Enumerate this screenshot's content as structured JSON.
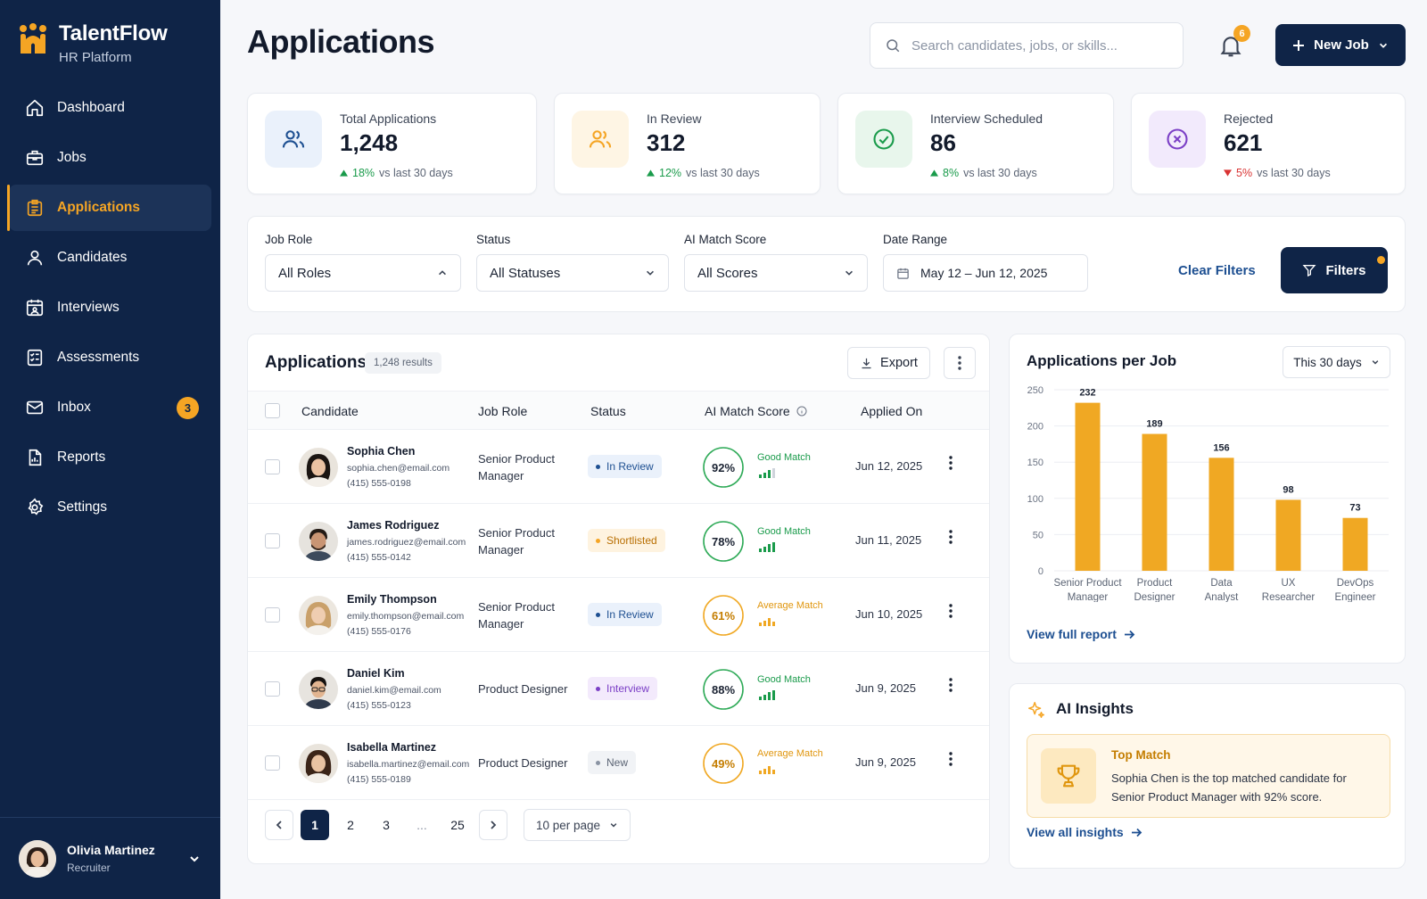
{
  "brand": {
    "name": "TalentFlow",
    "subtitle": "HR Platform",
    "accent": "#f5a524",
    "navy": "#0f2447"
  },
  "sidebar": {
    "items": [
      {
        "label": "Dashboard",
        "icon": "home-icon"
      },
      {
        "label": "Jobs",
        "icon": "briefcase-icon"
      },
      {
        "label": "Applications",
        "icon": "clipboard-icon",
        "active": true
      },
      {
        "label": "Candidates",
        "icon": "user-icon"
      },
      {
        "label": "Interviews",
        "icon": "calendar-user-icon"
      },
      {
        "label": "Assessments",
        "icon": "checklist-icon"
      },
      {
        "label": "Inbox",
        "icon": "mail-icon",
        "badge": "3"
      },
      {
        "label": "Reports",
        "icon": "report-icon"
      },
      {
        "label": "Settings",
        "icon": "gear-icon"
      }
    ]
  },
  "user": {
    "name": "Olivia Martinez",
    "role": "Recruiter"
  },
  "header": {
    "title": "Applications",
    "search_placeholder": "Search candidates, jobs, or skills...",
    "notification_count": "6",
    "new_job_label": "New Job"
  },
  "stats": [
    {
      "label": "Total Applications",
      "value": "1,248",
      "change": "18%",
      "direction": "up",
      "suffix": "vs last 30 days",
      "icon": "users-icon",
      "color": "#1d4f91"
    },
    {
      "label": "In Review",
      "value": "312",
      "change": "12%",
      "direction": "up",
      "suffix": "vs last 30 days",
      "icon": "users-icon",
      "color": "#f5a524"
    },
    {
      "label": "Interview Scheduled",
      "value": "86",
      "change": "8%",
      "direction": "up",
      "suffix": "vs last 30 days",
      "icon": "check-circle-icon",
      "color": "#1a9b4b"
    },
    {
      "label": "Rejected",
      "value": "621",
      "change": "5%",
      "direction": "down",
      "suffix": "vs last 30 days",
      "icon": "x-circle-icon",
      "color": "#7b3fc6"
    }
  ],
  "filters": {
    "job_role": {
      "label": "Job Role",
      "value": "All Roles"
    },
    "status": {
      "label": "Status",
      "value": "All Statuses"
    },
    "score": {
      "label": "AI Match Score",
      "value": "All Scores"
    },
    "date": {
      "label": "Date Range",
      "value": "May 12 – Jun 12, 2025"
    },
    "clear_label": "Clear Filters",
    "filters_label": "Filters"
  },
  "table": {
    "title": "Applications",
    "results": "1,248 results",
    "export_label": "Export",
    "columns": {
      "candidate": "Candidate",
      "role": "Job Role",
      "status": "Status",
      "score": "AI Match Score",
      "applied": "Applied On"
    },
    "rows": [
      {
        "name": "Sophia Chen",
        "email": "sophia.chen@email.com",
        "phone": "(415) 555-0198",
        "role": "Senior Product Manager",
        "status": "In Review",
        "score": "92%",
        "score_value": 92,
        "match": "Good Match",
        "date": "Jun 12, 2025"
      },
      {
        "name": "James Rodriguez",
        "email": "james.rodriguez@email.com",
        "phone": "(415) 555-0142",
        "role": "Senior Product Manager",
        "status": "Shortlisted",
        "score": "78%",
        "score_value": 78,
        "match": "Good Match",
        "date": "Jun 11, 2025"
      },
      {
        "name": "Emily Thompson",
        "email": "emily.thompson@email.com",
        "phone": "(415) 555-0176",
        "role": "Senior Product Manager",
        "status": "In Review",
        "score": "61%",
        "score_value": 61,
        "match": "Average Match",
        "date": "Jun 10, 2025"
      },
      {
        "name": "Daniel Kim",
        "email": "daniel.kim@email.com",
        "phone": "(415) 555-0123",
        "role": "Product Designer",
        "status": "Interview",
        "score": "88%",
        "score_value": 88,
        "match": "Good Match",
        "date": "Jun 9, 2025"
      },
      {
        "name": "Isabella Martinez",
        "email": "isabella.martinez@email.com",
        "phone": "(415) 555-0189",
        "role": "Product Designer",
        "status": "New",
        "score": "49%",
        "score_value": 49,
        "match": "Average Match",
        "date": "Jun 9, 2025"
      }
    ],
    "pagination": {
      "pages": [
        "1",
        "2",
        "3",
        "...",
        "25"
      ],
      "current": "1",
      "per_page": "10 per page"
    }
  },
  "chart_card": {
    "title": "Applications per Job",
    "period": "This 30 days",
    "link": "View full report"
  },
  "chart_data": {
    "type": "bar",
    "categories": [
      [
        "Senior Product",
        "Manager"
      ],
      [
        "Product",
        "Designer"
      ],
      [
        "Data",
        "Analyst"
      ],
      [
        "UX",
        "Researcher"
      ],
      [
        "DevOps",
        "Engineer"
      ]
    ],
    "values": [
      232,
      189,
      156,
      98,
      73
    ],
    "ylim": [
      0,
      250
    ],
    "yticks": [
      0,
      50,
      100,
      150,
      200,
      250
    ],
    "grid": true,
    "color": "#f0a823"
  },
  "ai": {
    "title": "AI Insights",
    "card_title": "Top Match",
    "card_text": "Sophia Chen is the top matched candidate for Senior Product Manager with 92% score.",
    "link": "View all insights"
  }
}
